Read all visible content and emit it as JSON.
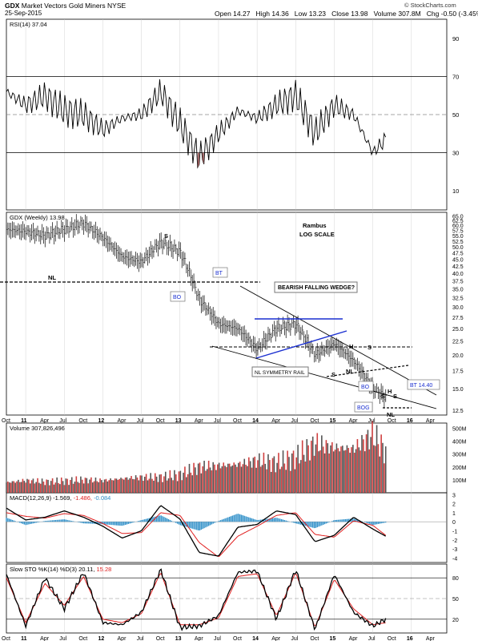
{
  "header": {
    "symbol": "GDX",
    "name": "Market Vectors Gold Miners",
    "exchange": "NYSE",
    "date": "25-Sep-2015",
    "open_label": "Open",
    "open": "14.27",
    "high_label": "High",
    "high": "14.36",
    "low_label": "Low",
    "low": "13.23",
    "close_label": "Close",
    "close": "13.98",
    "volume_label": "Volume",
    "volume": "307.8M",
    "chg_label": "Chg",
    "chg": "-0.50 (-3.45%)",
    "credit": "© StockCharts.com"
  },
  "colors": {
    "price_bar": "#222222",
    "neckline": "#000000",
    "blue_lines": "#1a2fd0",
    "volume_up": "#555555",
    "volume_down": "#d04040",
    "macd_line": "#000000",
    "signal_line": "#e02020",
    "histogram": "#2f8fc8",
    "rsi_fill": "#9b5c5c",
    "grid": "#c8c8c8"
  },
  "chart_data": [
    {
      "type": "line",
      "panel": "rsi",
      "title": "RSI(14) 37.04",
      "ylim": [
        0,
        100
      ],
      "yticks": [
        "90",
        "70",
        "50",
        "30",
        "10"
      ],
      "reference_lines": [
        70,
        50,
        30
      ],
      "x": [
        "2010-10",
        "2011-01",
        "2011-04",
        "2011-07",
        "2011-10",
        "2012-01",
        "2012-04",
        "2012-07",
        "2012-10",
        "2013-01",
        "2013-04",
        "2013-07",
        "2013-10",
        "2014-01",
        "2014-04",
        "2014-07",
        "2014-10",
        "2015-01",
        "2015-04",
        "2015-07",
        "2015-09"
      ],
      "values": [
        62,
        55,
        60,
        52,
        50,
        42,
        48,
        50,
        62,
        45,
        27,
        40,
        52,
        48,
        55,
        60,
        40,
        55,
        50,
        30,
        37
      ]
    },
    {
      "type": "bar",
      "panel": "price",
      "title": "GDX (Weekly) 13.98",
      "scale": "log",
      "annotation_main": "Rambus",
      "annotation_sub": "LOG SCALE",
      "yticks": [
        "65.0",
        "62.5",
        "60.0",
        "57.5",
        "55.0",
        "52.5",
        "50.0",
        "47.5",
        "45.0",
        "42.5",
        "40.0",
        "37.5",
        "35.0",
        "32.5",
        "30.0",
        "27.5",
        "25.0",
        "22.5",
        "20.0",
        "17.5",
        "15.0",
        "12.5"
      ],
      "x_ticks": [
        "Oct",
        "11",
        "Apr",
        "Jul",
        "Oct",
        "12",
        "Apr",
        "Jul",
        "Oct",
        "13",
        "Apr",
        "Jul",
        "Oct",
        "14",
        "Apr",
        "Jul",
        "Oct",
        "15",
        "Apr",
        "Jul",
        "Oct",
        "16",
        "Apr"
      ],
      "x": [
        "2010-10",
        "2011-01",
        "2011-04",
        "2011-07",
        "2011-10",
        "2012-01",
        "2012-04",
        "2012-07",
        "2012-10",
        "2013-01",
        "2013-04",
        "2013-07",
        "2013-10",
        "2014-01",
        "2014-04",
        "2014-07",
        "2014-10",
        "2015-01",
        "2015-04",
        "2015-07",
        "2015-09"
      ],
      "values": [
        58,
        57,
        55,
        58,
        61,
        54,
        46,
        44,
        52,
        48,
        32,
        26,
        25,
        21,
        25,
        26,
        20,
        22,
        19,
        15,
        14
      ],
      "labels": {
        "nl_left": "NL",
        "s_left": "S",
        "bt_top": "BT",
        "bo_top": "BO",
        "wedge": "BEARISH FALLING WEDGE?",
        "nl_symmetry": "NL SYMMETRY RAIL",
        "s_mid": "S",
        "h_mid": "H",
        "s_mid2": "S",
        "nl_mid": "NL",
        "bo_low": "BO",
        "h_low": "H",
        "bog": "BOG",
        "s_low1": "S",
        "s_low2": "S",
        "nl_low": "NL",
        "bt_price": "BT 14.40"
      }
    },
    {
      "type": "bar",
      "panel": "volume",
      "title": "Volume 307,826,496",
      "yticks": [
        "500M",
        "400M",
        "300M",
        "200M",
        "100M"
      ],
      "ylim": [
        0,
        540
      ],
      "x": [
        "2010-10",
        "2011-01",
        "2011-04",
        "2011-07",
        "2011-10",
        "2012-01",
        "2012-04",
        "2012-07",
        "2012-10",
        "2013-01",
        "2013-04",
        "2013-07",
        "2013-10",
        "2014-01",
        "2014-04",
        "2014-07",
        "2014-10",
        "2015-01",
        "2015-04",
        "2015-07",
        "2015-09"
      ],
      "values": [
        80,
        95,
        85,
        90,
        100,
        95,
        110,
        120,
        120,
        140,
        200,
        210,
        220,
        250,
        230,
        270,
        380,
        350,
        340,
        450,
        320
      ]
    },
    {
      "type": "line",
      "panel": "macd",
      "title": "MACD(12,26,9)",
      "values_text": {
        "macd": "-1.569",
        "signal": "-1.486",
        "hist": "-0.084"
      },
      "yticks": [
        "3",
        "2",
        "1",
        "0",
        "-1",
        "-2",
        "-3",
        "-4"
      ],
      "ylim": [
        -4.5,
        3.2
      ],
      "x": [
        "2010-10",
        "2011-01",
        "2011-04",
        "2011-07",
        "2011-10",
        "2012-01",
        "2012-04",
        "2012-07",
        "2012-10",
        "2013-01",
        "2013-04",
        "2013-07",
        "2013-10",
        "2014-01",
        "2014-04",
        "2014-07",
        "2014-10",
        "2015-01",
        "2015-04",
        "2015-07",
        "2015-09"
      ],
      "series": [
        {
          "name": "MACD",
          "values": [
            1.5,
            0.2,
            0.5,
            1.2,
            0.5,
            -0.5,
            -1.8,
            -1.0,
            1.8,
            0.3,
            -3.4,
            -3.8,
            -0.6,
            -0.3,
            1.2,
            0.8,
            -2.2,
            -1.5,
            0.5,
            -0.8,
            -1.6
          ]
        },
        {
          "name": "Signal",
          "values": [
            1.0,
            0.6,
            0.4,
            0.9,
            0.7,
            -0.2,
            -1.3,
            -1.2,
            1.0,
            0.7,
            -2.3,
            -3.9,
            -1.6,
            -0.5,
            0.7,
            1.0,
            -1.4,
            -1.7,
            0.1,
            -0.4,
            -1.5
          ]
        }
      ]
    },
    {
      "type": "line",
      "panel": "sto",
      "title": "Slow STO %K(14) %D(3)",
      "values_text": {
        "k": "20.11",
        "d": "15.28"
      },
      "yticks": [
        "80",
        "50",
        "20"
      ],
      "ylim": [
        0,
        100
      ],
      "x": [
        "2010-10",
        "2011-01",
        "2011-04",
        "2011-07",
        "2011-10",
        "2012-01",
        "2012-04",
        "2012-07",
        "2012-10",
        "2013-01",
        "2013-04",
        "2013-07",
        "2013-10",
        "2014-01",
        "2014-04",
        "2014-07",
        "2014-10",
        "2015-01",
        "2015-04",
        "2015-07",
        "2015-09"
      ],
      "series": [
        {
          "name": "%K",
          "values": [
            85,
            10,
            80,
            35,
            88,
            15,
            12,
            30,
            92,
            8,
            10,
            25,
            88,
            90,
            20,
            92,
            5,
            85,
            30,
            10,
            20
          ]
        },
        {
          "name": "%D",
          "values": [
            80,
            15,
            72,
            40,
            82,
            20,
            15,
            28,
            88,
            12,
            12,
            22,
            82,
            86,
            25,
            88,
            8,
            78,
            35,
            12,
            15
          ]
        }
      ]
    }
  ]
}
